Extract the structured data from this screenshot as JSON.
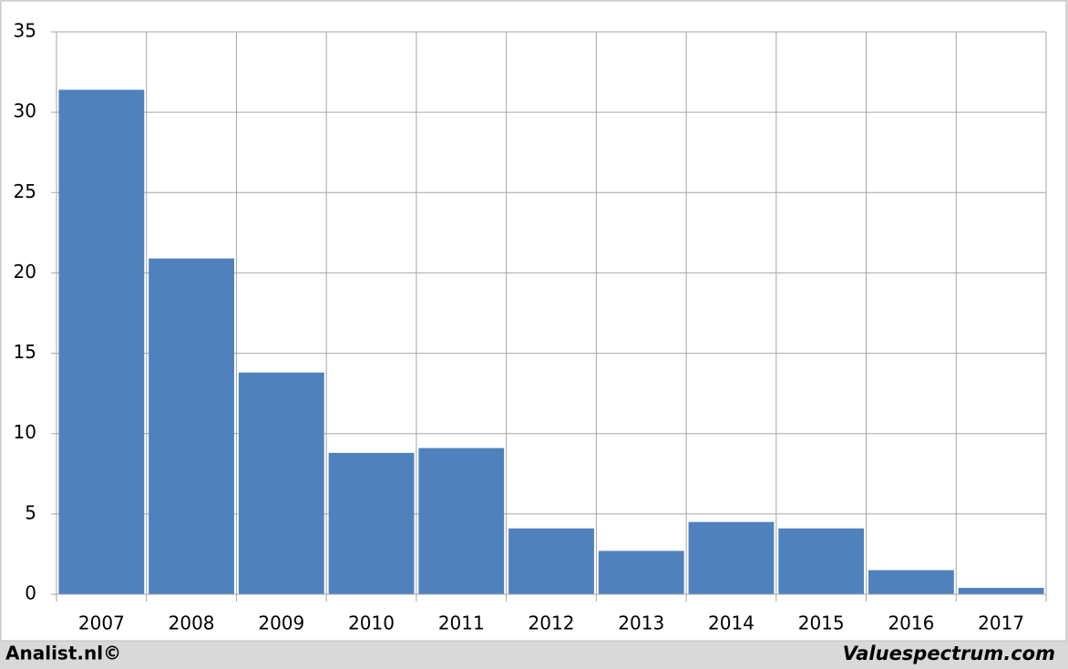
{
  "chart_data": {
    "type": "bar",
    "categories": [
      "2007",
      "2008",
      "2009",
      "2010",
      "2011",
      "2012",
      "2013",
      "2014",
      "2015",
      "2016",
      "2017"
    ],
    "values": [
      31.4,
      20.9,
      13.8,
      8.8,
      9.1,
      4.1,
      2.7,
      4.5,
      4.1,
      1.5,
      0.4
    ],
    "color": "#4f81bd",
    "ylim": [
      0,
      35
    ],
    "yticks": [
      0,
      5,
      10,
      15,
      20,
      25,
      30,
      35
    ],
    "grid": true,
    "annotations": [
      "Analist.nl©",
      "Valuespectrum.com"
    ]
  }
}
